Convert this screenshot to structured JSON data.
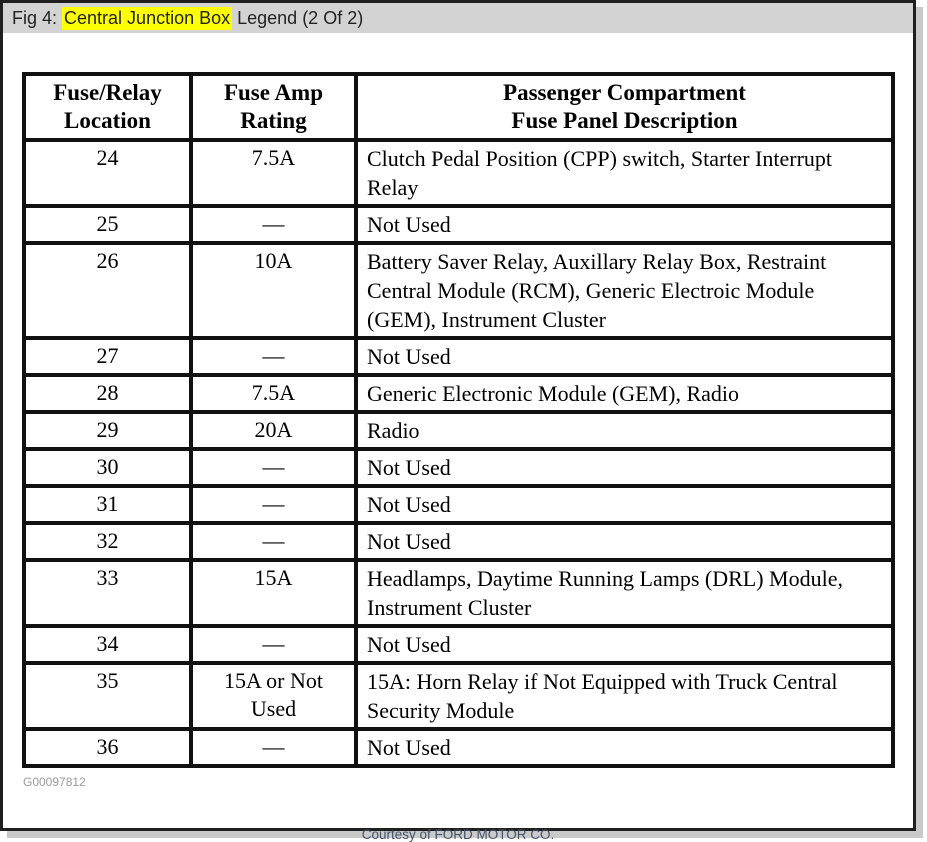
{
  "window": {
    "title_prefix": "Fig 4: ",
    "title_highlight": "Central Junction Box",
    "title_suffix": " Legend (2 Of 2)"
  },
  "table": {
    "headers": [
      {
        "line1": "Fuse/Relay",
        "line2": "Location"
      },
      {
        "line1": "Fuse Amp",
        "line2": "Rating"
      },
      {
        "line1": "Passenger Compartment",
        "line2": "Fuse Panel Description"
      }
    ],
    "rows": [
      {
        "location": "24",
        "rating": "7.5A",
        "description": "Clutch Pedal Position (CPP) switch, Starter Interrupt Relay"
      },
      {
        "location": "25",
        "rating": "—",
        "description": "Not Used"
      },
      {
        "location": "26",
        "rating": "10A",
        "description": "Battery Saver Relay, Auxillary Relay Box, Restraint Central Module (RCM), Generic Electroic Module (GEM), Instrument Cluster"
      },
      {
        "location": "27",
        "rating": "—",
        "description": "Not Used"
      },
      {
        "location": "28",
        "rating": "7.5A",
        "description": "Generic Electronic Module (GEM), Radio"
      },
      {
        "location": "29",
        "rating": "20A",
        "description": "Radio"
      },
      {
        "location": "30",
        "rating": "—",
        "description": "Not Used"
      },
      {
        "location": "31",
        "rating": "—",
        "description": "Not Used"
      },
      {
        "location": "32",
        "rating": "—",
        "description": "Not Used"
      },
      {
        "location": "33",
        "rating": "15A",
        "description": "Headlamps, Daytime Running Lamps (DRL) Module, Instrument Cluster"
      },
      {
        "location": "34",
        "rating": "—",
        "description": "Not Used"
      },
      {
        "location": "35",
        "rating": "15A or Not Used",
        "description": "15A: Horn Relay if Not Equipped with Truck Central Security Module"
      },
      {
        "location": "36",
        "rating": "—",
        "description": "Not Used"
      }
    ]
  },
  "footer": {
    "figure_id": "G00097812",
    "courtesy": "Courtesy of FORD MOTOR CO."
  },
  "colors": {
    "highlight": "#ffff00",
    "titlebar_bg": "#d3d3d3",
    "frame_border": "#1f1f1f",
    "table_border": "#111111",
    "figure_id_text": "#9a9a9a",
    "courtesy_text": "#44546a"
  }
}
